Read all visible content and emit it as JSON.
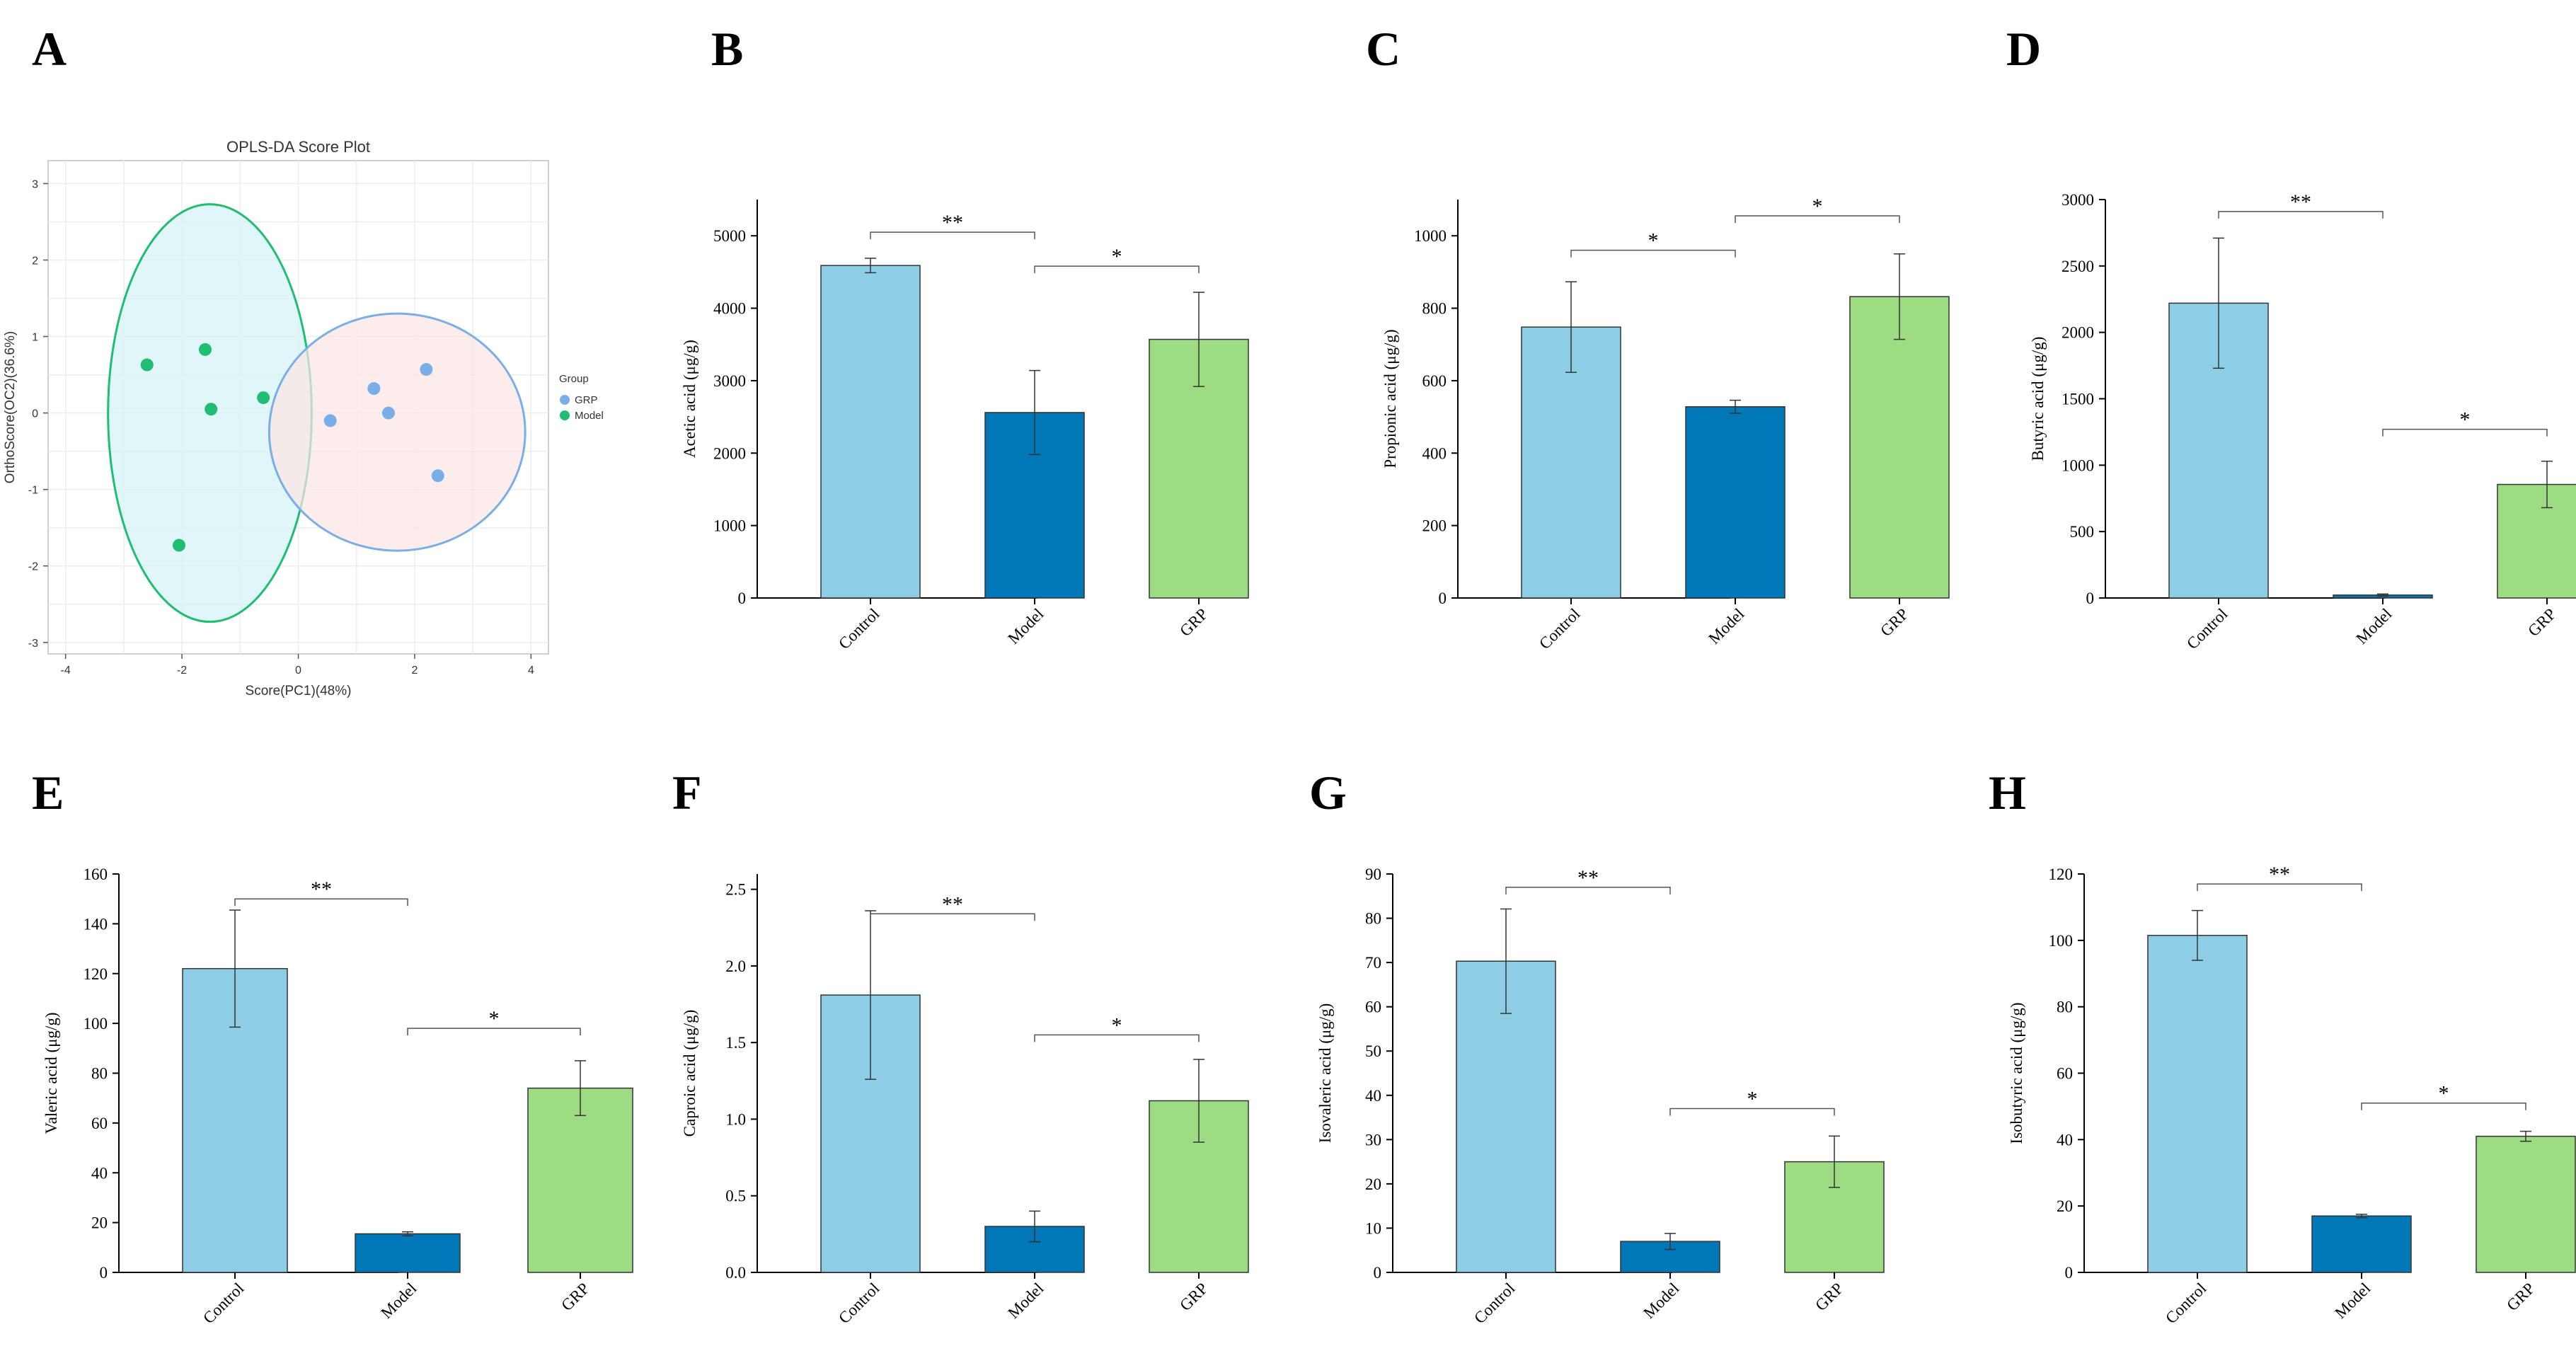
{
  "colors": {
    "control": "#8ecde6",
    "model": "#0077b6",
    "grp": "#9edc83",
    "grp_points": "#7aaee8",
    "model_points": "#1fbe72",
    "ellipse_model_fill": "#d4f3f5",
    "ellipse_model_stroke": "#1fbe72",
    "ellipse_grp_fill": "#fbe5e5",
    "ellipse_grp_stroke": "#7aaee8"
  },
  "chart_data": [
    {
      "panel": "A",
      "type": "scatter",
      "title": "OPLS-DA Score Plot",
      "xlabel": "Score(PC1)(48%)",
      "ylabel": "OrthoScore(OC2)(36.6%)",
      "xlim": [
        -4.3,
        4.3
      ],
      "ylim": [
        -3.15,
        3.3
      ],
      "xticks": [
        -4,
        -2,
        0,
        2,
        4
      ],
      "yticks": [
        -3,
        -2,
        -1,
        0,
        1,
        2,
        3
      ],
      "legend_title": "Group",
      "series": [
        {
          "name": "GRP",
          "color_key": "grp_points",
          "points": [
            [
              0.55,
              -0.1
            ],
            [
              1.3,
              0.32
            ],
            [
              1.55,
              0.0
            ],
            [
              2.2,
              0.57
            ],
            [
              2.4,
              -0.82
            ]
          ]
        },
        {
          "name": "Model",
          "color_key": "model_points",
          "points": [
            [
              -2.6,
              0.63
            ],
            [
              -1.6,
              0.83
            ],
            [
              -1.5,
              0.05
            ],
            [
              -0.6,
              0.2
            ],
            [
              -2.05,
              -1.73
            ]
          ]
        }
      ],
      "ellipses": [
        {
          "group": "Model",
          "center": [
            -1.52,
            0.0
          ],
          "radii": [
            1.75,
            2.73
          ]
        },
        {
          "group": "GRP",
          "center": [
            1.7,
            -0.25
          ],
          "radii": [
            2.2,
            1.55
          ]
        }
      ]
    },
    {
      "panel": "B",
      "type": "bar",
      "ylabel": "Acetic acid (μg/g)",
      "categories": [
        "Control",
        "Model",
        "GRP"
      ],
      "values": [
        4590,
        2560,
        3570
      ],
      "errors": [
        100,
        580,
        650
      ],
      "ylim": [
        0,
        5500
      ],
      "yticks": [
        0,
        1000,
        2000,
        3000,
        4000,
        5000
      ],
      "annotations": [
        {
          "from": 0,
          "to": 1,
          "y": 5050,
          "label": "**"
        },
        {
          "from": 1,
          "to": 2,
          "y": 4580,
          "label": "*"
        }
      ]
    },
    {
      "panel": "C",
      "type": "bar",
      "ylabel": "Propionic acid (μg/g)",
      "categories": [
        "Control",
        "Model",
        "GRP"
      ],
      "values": [
        748,
        528,
        832
      ],
      "errors": [
        125,
        18,
        118
      ],
      "ylim": [
        0,
        1100
      ],
      "yticks": [
        0,
        200,
        400,
        600,
        800,
        1000
      ],
      "annotations": [
        {
          "from": 0,
          "to": 1,
          "y": 960,
          "label": "*"
        },
        {
          "from": 1,
          "to": 2,
          "y": 1055,
          "label": "*"
        }
      ]
    },
    {
      "panel": "D",
      "type": "bar",
      "ylabel": "Butyric acid (μg/g)",
      "categories": [
        "Control",
        "Model",
        "GRP"
      ],
      "values": [
        2220,
        22,
        855
      ],
      "errors": [
        490,
        8,
        175
      ],
      "ylim": [
        0,
        3000
      ],
      "yticks": [
        0,
        500,
        1000,
        1500,
        2000,
        2500,
        3000
      ],
      "annotations": [
        {
          "from": 0,
          "to": 1,
          "y": 2910,
          "label": "**"
        },
        {
          "from": 1,
          "to": 2,
          "y": 1270,
          "label": "*"
        }
      ]
    },
    {
      "panel": "E",
      "type": "bar",
      "ylabel": "Valeric acid (μg/g)",
      "categories": [
        "Control",
        "Model",
        "GRP"
      ],
      "values": [
        122,
        15.5,
        74
      ],
      "errors": [
        23.5,
        0.8,
        11
      ],
      "ylim": [
        0,
        160
      ],
      "yticks": [
        0,
        20,
        40,
        60,
        80,
        100,
        120,
        140,
        160
      ],
      "annotations": [
        {
          "from": 0,
          "to": 1,
          "y": 150,
          "label": "**"
        },
        {
          "from": 1,
          "to": 2,
          "y": 98,
          "label": "*"
        }
      ]
    },
    {
      "panel": "F",
      "type": "bar",
      "ylabel": "Caproic acid (μg/g)",
      "categories": [
        "Control",
        "Model",
        "GRP"
      ],
      "values": [
        1.81,
        0.3,
        1.12
      ],
      "errors": [
        0.55,
        0.1,
        0.27
      ],
      "ylim": [
        0,
        2.6
      ],
      "yticks": [
        0.0,
        0.5,
        1.0,
        1.5,
        2.0,
        2.5
      ],
      "tick_format": "fixed1",
      "annotations": [
        {
          "from": 0,
          "to": 1,
          "y": 2.34,
          "label": "**"
        },
        {
          "from": 1,
          "to": 2,
          "y": 1.55,
          "label": "*"
        }
      ]
    },
    {
      "panel": "G",
      "type": "bar",
      "ylabel": "Isovaleric acid (μg/g)",
      "categories": [
        "Control",
        "Model",
        "GRP"
      ],
      "values": [
        70.3,
        7,
        25
      ],
      "errors": [
        11.8,
        1.8,
        5.8
      ],
      "ylim": [
        0,
        90
      ],
      "yticks": [
        0,
        10,
        20,
        30,
        40,
        50,
        60,
        70,
        80,
        90
      ],
      "annotations": [
        {
          "from": 0,
          "to": 1,
          "y": 87,
          "label": "**"
        },
        {
          "from": 1,
          "to": 2,
          "y": 37,
          "label": "*"
        }
      ]
    },
    {
      "panel": "H",
      "type": "bar",
      "ylabel": "Isobutyric acid (μg/g)",
      "categories": [
        "Control",
        "Model",
        "GRP"
      ],
      "values": [
        101.5,
        17,
        41
      ],
      "errors": [
        7.5,
        0.5,
        1.5
      ],
      "ylim": [
        0,
        120
      ],
      "yticks": [
        0,
        20,
        40,
        60,
        80,
        100,
        120
      ],
      "annotations": [
        {
          "from": 0,
          "to": 1,
          "y": 117,
          "label": "**"
        },
        {
          "from": 1,
          "to": 2,
          "y": 51,
          "label": "*"
        }
      ]
    }
  ]
}
